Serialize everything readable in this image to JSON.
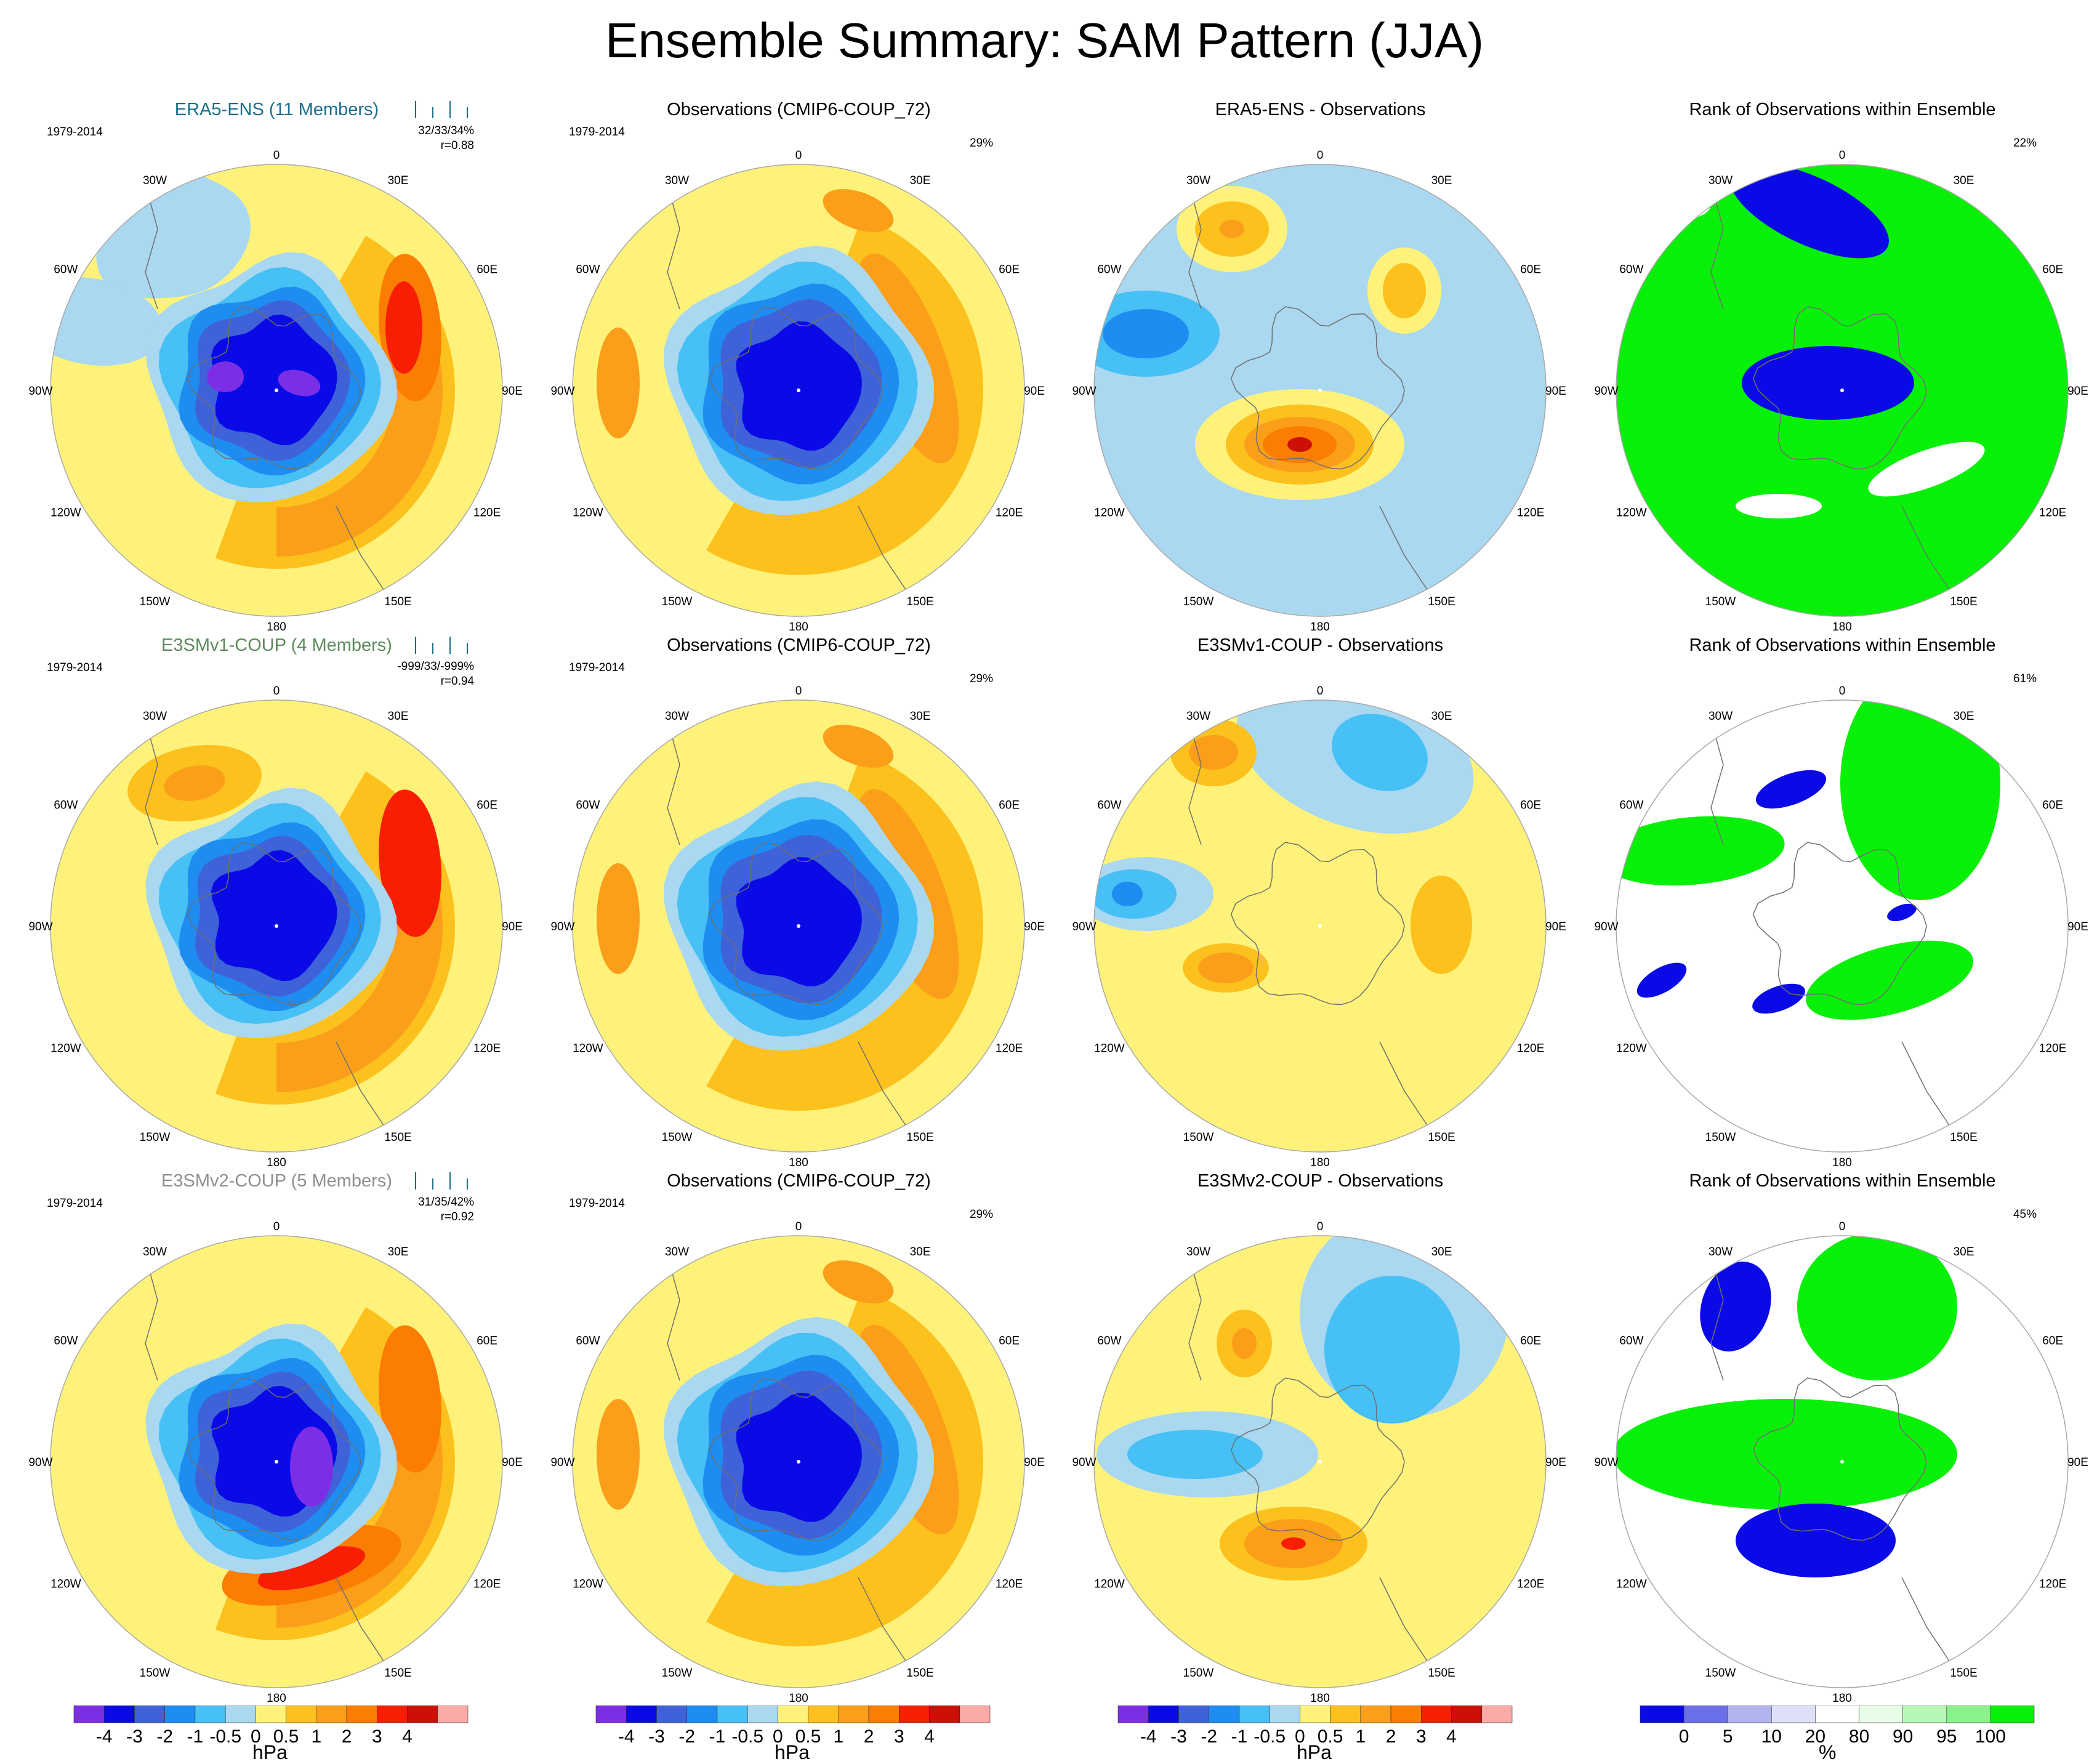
{
  "title": "Ensemble Summary: SAM Pattern (JJA)",
  "colors": {
    "hpa_scale": [
      "#7b2ee6",
      "#0a0ae6",
      "#3f62d8",
      "#1e8cf0",
      "#46c0f5",
      "#a9d8f0",
      "#fff27a",
      "#fcc11d",
      "#fb9f1a",
      "#fb7d03",
      "#f81e04",
      "#cc1005",
      "#fcaaa8"
    ],
    "pct_scale": [
      "#0a0ae6",
      "#6b70e8",
      "#b2b4ee",
      "#dde0f8",
      "#ffffff",
      "#e8fde8",
      "#b5f7b5",
      "#8af28a",
      "#08f008"
    ],
    "coastline": "#6f6f6f"
  },
  "common": {
    "period": "1979-2014",
    "lon_labels": [
      "0",
      "30E",
      "60E",
      "90E",
      "120E",
      "150E",
      "180",
      "150W",
      "120W",
      "90W",
      "60W",
      "30W"
    ]
  },
  "rows": [
    {
      "model_title": "ERA5-ENS (11 Members)",
      "stats_line1": "32/33/34%",
      "stats_line2": "r=0.88",
      "obs_title": "Observations (CMIP6-COUP_72)",
      "obs_pct": "29%",
      "diff_title": "ERA5-ENS - Observations",
      "rank_title": "Rank of Observations within Ensemble",
      "rank_pct": "22%"
    },
    {
      "model_title": "E3SMv1-COUP (4 Members)",
      "stats_line1": "-999/33/-999%",
      "stats_line2": "r=0.94",
      "obs_title": "Observations (CMIP6-COUP_72)",
      "obs_pct": "29%",
      "diff_title": "E3SMv1-COUP - Observations",
      "rank_title": "Rank of Observations within Ensemble",
      "rank_pct": "61%"
    },
    {
      "model_title": "E3SMv2-COUP (5 Members)",
      "stats_line1": "31/35/42%",
      "stats_line2": "r=0.92",
      "obs_title": "Observations (CMIP6-COUP_72)",
      "obs_pct": "29%",
      "diff_title": "E3SMv2-COUP - Observations",
      "rank_title": "Rank of Observations within Ensemble",
      "rank_pct": "45%"
    }
  ],
  "colorbars": {
    "hpa": {
      "labels": [
        "-4",
        "-3",
        "-2",
        "-1",
        "-0.5",
        "0",
        "0.5",
        "1",
        "2",
        "3",
        "4"
      ],
      "unit": "hPa"
    },
    "pct": {
      "labels": [
        "0",
        "5",
        "10",
        "20",
        "80",
        "90",
        "95",
        "100"
      ],
      "unit": "%"
    }
  },
  "chart_data": {
    "type": "heatmap",
    "projection": "south-polar-stereographic",
    "panels_per_row": 4,
    "row_models": [
      "ERA5-ENS (11 Members)",
      "E3SMv1-COUP (4 Members)",
      "E3SMv2-COUP (5 Members)"
    ],
    "hpa_levels": [
      -4,
      -3,
      -2,
      -1,
      -0.5,
      0,
      0.5,
      1,
      2,
      3,
      4
    ],
    "pct_levels": [
      0,
      5,
      10,
      20,
      80,
      90,
      95,
      100
    ]
  }
}
